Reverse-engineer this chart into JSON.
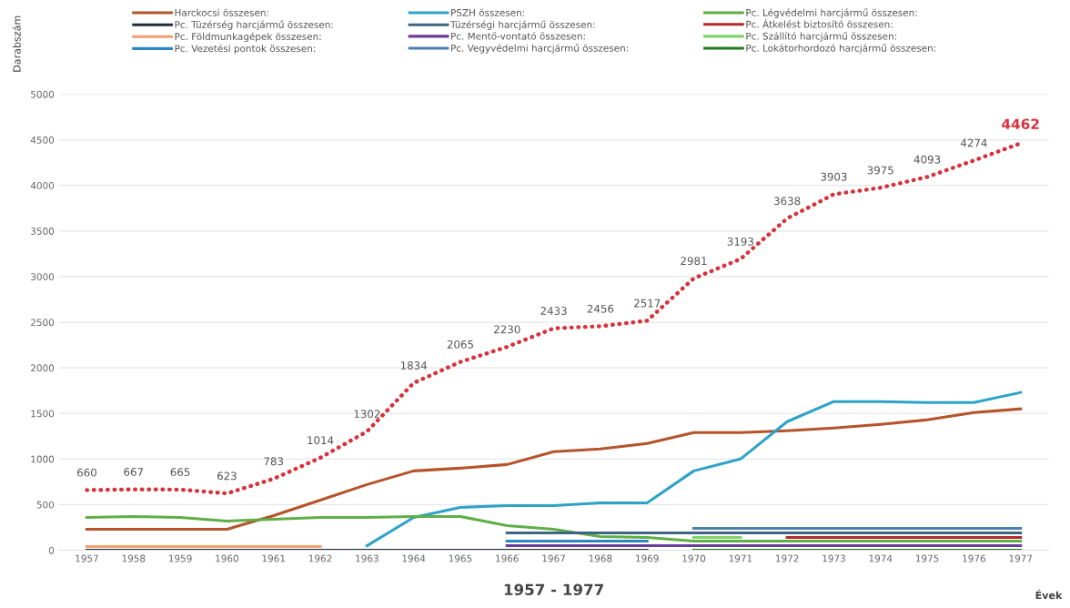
{
  "chart_data": {
    "type": "line",
    "title": "1957 - 1977",
    "xlabel": "Évek",
    "ylabel": "Darabszám",
    "categories": [
      "1957",
      "1958",
      "1959",
      "1960",
      "1961",
      "1962",
      "1963",
      "1964",
      "1965",
      "1966",
      "1967",
      "1968",
      "1969",
      "1970",
      "1971",
      "1972",
      "1973",
      "1974",
      "1975",
      "1976",
      "1977"
    ],
    "ylim": [
      0,
      5000
    ],
    "yticks": [
      0,
      500,
      1000,
      1500,
      2000,
      2500,
      3000,
      3500,
      4000,
      4500,
      5000
    ],
    "grid": "y",
    "legend": "top",
    "line_style": "solid",
    "marker": "none",
    "series": [
      {
        "name": "Harckocsi összesen:",
        "color": "#b5532a",
        "values": [
          230,
          230,
          230,
          230,
          380,
          550,
          720,
          870,
          900,
          940,
          1080,
          1110,
          1170,
          1290,
          1290,
          1310,
          1340,
          1380,
          1430,
          1510,
          1550
        ]
      },
      {
        "name": "PSZH összesen:",
        "color": "#2ea3c8",
        "values": [
          null,
          null,
          null,
          null,
          null,
          null,
          50,
          360,
          470,
          490,
          490,
          520,
          520,
          870,
          1000,
          1410,
          1630,
          1630,
          1620,
          1620,
          1730
        ]
      },
      {
        "name": "Pc. Légvédelmi harcjármű összesen:",
        "color": "#5fae47",
        "values": [
          360,
          370,
          360,
          320,
          340,
          360,
          360,
          370,
          370,
          270,
          230,
          150,
          140,
          100,
          100,
          100,
          100,
          100,
          100,
          100,
          100
        ]
      },
      {
        "name": "Pc. Tüzérség harcjármű összesen:",
        "color": "#1f2d3d",
        "values": [
          0,
          0,
          0,
          0,
          0,
          0,
          0,
          0,
          0,
          0,
          0,
          0,
          0,
          null,
          null,
          null,
          null,
          null,
          null,
          null,
          null
        ]
      },
      {
        "name": "Tüzérségi harcjármű összesen:",
        "color": "#3d6680",
        "values": [
          null,
          null,
          null,
          null,
          null,
          null,
          null,
          null,
          null,
          190,
          190,
          190,
          190,
          190,
          190,
          190,
          190,
          190,
          190,
          190,
          190
        ]
      },
      {
        "name": "Pc. Átkelést biztosító összesen:",
        "color": "#b22a2a",
        "values": [
          null,
          null,
          null,
          null,
          null,
          null,
          null,
          null,
          null,
          null,
          null,
          null,
          null,
          null,
          null,
          140,
          140,
          140,
          140,
          140,
          140
        ]
      },
      {
        "name": "Pc. Földmunkagépek összesen:",
        "color": "#f0a070",
        "values": [
          40,
          40,
          40,
          40,
          40,
          40,
          null,
          null,
          null,
          null,
          null,
          null,
          null,
          null,
          null,
          null,
          null,
          null,
          null,
          null,
          null
        ]
      },
      {
        "name": "Pc. Mentő-vontató összesen:",
        "color": "#6a3d9a",
        "values": [
          null,
          null,
          null,
          null,
          null,
          null,
          null,
          null,
          null,
          50,
          50,
          50,
          50,
          50,
          50,
          50,
          50,
          50,
          50,
          50,
          50
        ]
      },
      {
        "name": "Pc. Szállító harcjármű összesen:",
        "color": "#7fd36a",
        "values": [
          null,
          null,
          null,
          null,
          null,
          null,
          null,
          null,
          null,
          null,
          null,
          null,
          null,
          140,
          140,
          null,
          null,
          null,
          null,
          null,
          null
        ]
      },
      {
        "name": "Pc. Vezetési pontok összesen:",
        "color": "#2e86c1",
        "values": [
          null,
          null,
          null,
          null,
          null,
          null,
          null,
          null,
          null,
          100,
          100,
          100,
          100,
          null,
          null,
          null,
          null,
          null,
          null,
          null,
          null
        ]
      },
      {
        "name": "Pc. Vegyvédelmi harcjármű összesen:",
        "color": "#4a7fb0",
        "values": [
          null,
          null,
          null,
          null,
          null,
          null,
          null,
          null,
          null,
          null,
          null,
          null,
          null,
          240,
          240,
          240,
          240,
          240,
          240,
          240,
          240
        ]
      },
      {
        "name": "Pc. Lokátorhordozó harcjármű összesen:",
        "color": "#1e7b1e",
        "values": [
          null,
          null,
          null,
          null,
          null,
          null,
          null,
          null,
          null,
          null,
          null,
          null,
          null,
          0,
          0,
          0,
          0,
          0,
          0,
          0,
          0
        ]
      },
      {
        "color": "#d9303a",
        "line_style": "dotted",
        "data_labels": true,
        "values": [
          660,
          667,
          665,
          623,
          783,
          1014,
          1302,
          1834,
          2065,
          2230,
          2433,
          2456,
          2517,
          2981,
          3193,
          3638,
          3903,
          3975,
          4093,
          4274,
          4462
        ]
      }
    ]
  }
}
